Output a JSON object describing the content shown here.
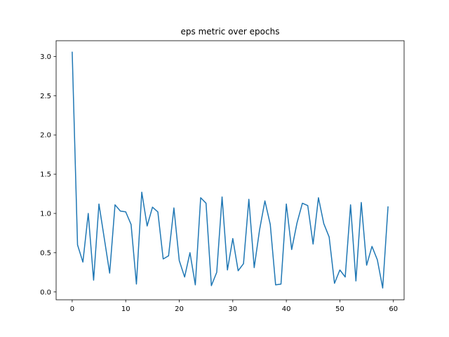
{
  "chart_data": {
    "type": "line",
    "title": "eps metric over epochs",
    "xlabel": "",
    "ylabel": "",
    "xlim": [
      -3,
      62
    ],
    "ylim": [
      -0.1,
      3.2
    ],
    "xticks": [
      0,
      10,
      20,
      30,
      40,
      50,
      60
    ],
    "yticks": [
      0.0,
      0.5,
      1.0,
      1.5,
      2.0,
      2.5,
      3.0
    ],
    "grid": false,
    "line_color": "#1f77b4",
    "series": [
      {
        "x": [
          0,
          1,
          2,
          3,
          4,
          5,
          6,
          7,
          8,
          9,
          10,
          11,
          12,
          13,
          14,
          15,
          16,
          17,
          18,
          19,
          20,
          21,
          22,
          23,
          24,
          25,
          26,
          27,
          28,
          29,
          30,
          31,
          32,
          33,
          34,
          35,
          36,
          37,
          38,
          39,
          40,
          41,
          42,
          43,
          44,
          45,
          46,
          47,
          48,
          49,
          50,
          51,
          52,
          53,
          54,
          55,
          56,
          57,
          58,
          59
        ],
        "y": [
          3.06,
          0.6,
          0.38,
          1.0,
          0.15,
          1.12,
          0.68,
          0.24,
          1.11,
          1.03,
          1.02,
          0.86,
          0.1,
          1.27,
          0.84,
          1.08,
          1.02,
          0.42,
          0.46,
          1.07,
          0.4,
          0.19,
          0.5,
          0.09,
          1.2,
          1.13,
          0.08,
          0.25,
          1.21,
          0.28,
          0.68,
          0.27,
          0.36,
          1.18,
          0.31,
          0.79,
          1.16,
          0.86,
          0.09,
          0.1,
          1.12,
          0.54,
          0.88,
          1.13,
          1.1,
          0.61,
          1.2,
          0.87,
          0.7,
          0.11,
          0.28,
          0.19,
          1.11,
          0.14,
          1.14,
          0.34,
          0.58,
          0.41,
          0.05,
          1.09
        ]
      }
    ]
  }
}
